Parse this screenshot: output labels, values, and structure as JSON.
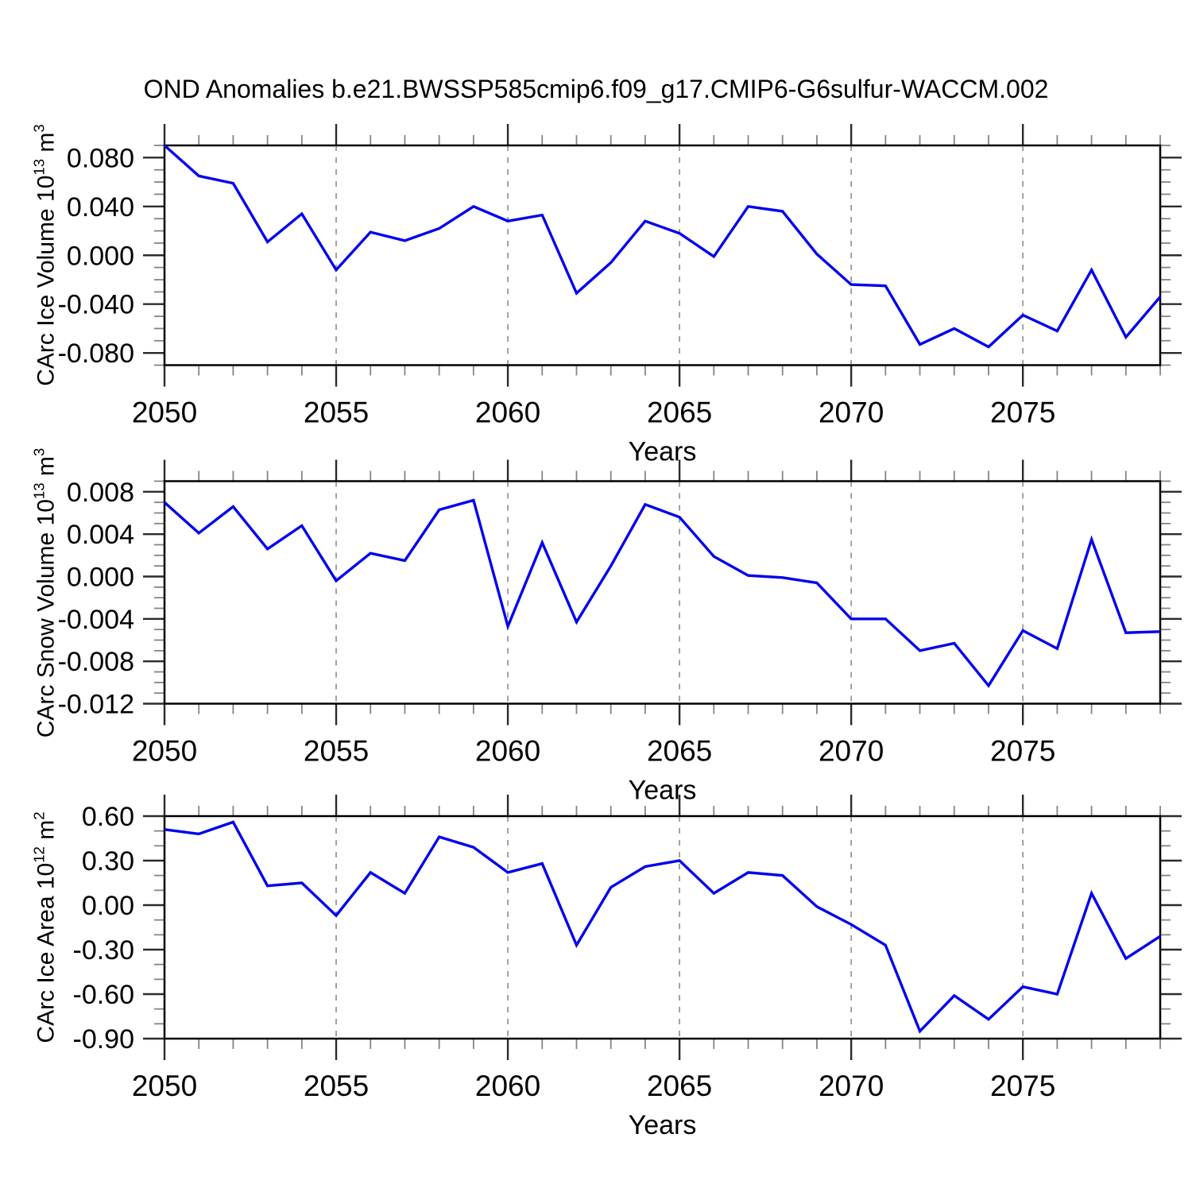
{
  "title": "OND Anomalies b.e21.BWSSP585cmip6.f09_g17.CMIP6-G6sulfur-WACCM.002",
  "colors": {
    "line": "#0000EE",
    "frame": "#000000",
    "major_tick": "#2b2b2b",
    "minor_tick": "#848484",
    "grid": "#999999",
    "text": "#000000",
    "background": "#FFFFFF"
  },
  "xaxis": {
    "label": "Years",
    "start": 2050,
    "end": 2079,
    "major_ticks": [
      2050,
      2055,
      2060,
      2065,
      2070,
      2075
    ],
    "major_tick_labels": [
      "2050",
      "2055",
      "2060",
      "2065",
      "2070",
      "2075"
    ],
    "minor_step": 1,
    "gridlines": [
      2055,
      2060,
      2065,
      2070,
      2075
    ]
  },
  "chart_data": {
    "type": "line",
    "title": "OND Anomalies b.e21.BWSSP585cmip6.f09_g17.CMIP6-G6sulfur-WACCM.002",
    "xlabel": "Years",
    "x": [
      2050,
      2051,
      2052,
      2053,
      2054,
      2055,
      2056,
      2057,
      2058,
      2059,
      2060,
      2061,
      2062,
      2063,
      2064,
      2065,
      2066,
      2067,
      2068,
      2069,
      2070,
      2071,
      2072,
      2073,
      2074,
      2075,
      2076,
      2077,
      2078,
      2079
    ],
    "panels": [
      {
        "name": "carc_ice_volume",
        "ylabel": "CArc Ice Volume 10^13 m^3",
        "ylabel_parts": {
          "prefix": "CArc Ice Volume 10",
          "exp1": "13",
          "mid": " m",
          "exp2": "3"
        },
        "ylim": [
          -0.09,
          0.09
        ],
        "ytick_values": [
          -0.08,
          -0.04,
          0.0,
          0.04,
          0.08
        ],
        "ytick_labels": [
          "-0.080",
          "-0.040",
          "0.000",
          "0.040",
          "0.080"
        ],
        "minor_step": 0.01,
        "values": [
          0.09,
          0.065,
          0.059,
          0.011,
          0.034,
          -0.012,
          0.019,
          0.012,
          0.022,
          0.04,
          0.028,
          0.033,
          -0.031,
          -0.006,
          0.028,
          0.018,
          -0.001,
          0.04,
          0.036,
          0.001,
          -0.024,
          -0.025,
          -0.073,
          -0.06,
          -0.075,
          -0.049,
          -0.062,
          -0.012,
          -0.067,
          -0.034
        ]
      },
      {
        "name": "carc_snow_volume",
        "ylabel": "CArc Snow Volume 10^13 m^3",
        "ylabel_parts": {
          "prefix": "CArc Snow Volume 10",
          "exp1": "13",
          "mid": " m",
          "exp2": "3"
        },
        "ylim": [
          -0.012,
          0.009
        ],
        "ytick_values": [
          -0.012,
          -0.008,
          -0.004,
          0.0,
          0.004,
          0.008
        ],
        "ytick_labels": [
          "-0.012",
          "-0.008",
          "-0.004",
          "0.000",
          "0.004",
          "0.008"
        ],
        "minor_step": 0.001,
        "values": [
          0.007,
          0.0041,
          0.0066,
          0.0026,
          0.0048,
          -0.0004,
          0.0022,
          0.0015,
          0.0063,
          0.0072,
          -0.0047,
          0.0032,
          -0.0043,
          0.001,
          0.0068,
          0.0056,
          0.0019,
          0.0001,
          -0.0001,
          -0.0006,
          -0.004,
          -0.004,
          -0.007,
          -0.0063,
          -0.0103,
          -0.0051,
          -0.0068,
          0.0035,
          -0.0053,
          -0.0052
        ]
      },
      {
        "name": "carc_ice_area",
        "ylabel": "CArc Ice Area 10^12 m^2",
        "ylabel_parts": {
          "prefix": "CArc Ice Area 10",
          "exp1": "12",
          "mid": " m",
          "exp2": "2"
        },
        "ylim": [
          -0.9,
          0.6
        ],
        "ytick_values": [
          -0.9,
          -0.6,
          -0.3,
          0.0,
          0.3,
          0.6
        ],
        "ytick_labels": [
          "-0.90",
          "-0.60",
          "-0.30",
          "0.00",
          "0.30",
          "0.60"
        ],
        "minor_step": 0.1,
        "values": [
          0.51,
          0.48,
          0.56,
          0.13,
          0.15,
          -0.07,
          0.22,
          0.08,
          0.46,
          0.39,
          0.22,
          0.28,
          -0.27,
          0.12,
          0.26,
          0.3,
          0.08,
          0.22,
          0.2,
          -0.01,
          -0.13,
          -0.27,
          -0.85,
          -0.61,
          -0.77,
          -0.55,
          -0.6,
          0.08,
          -0.36,
          -0.21
        ]
      }
    ]
  }
}
